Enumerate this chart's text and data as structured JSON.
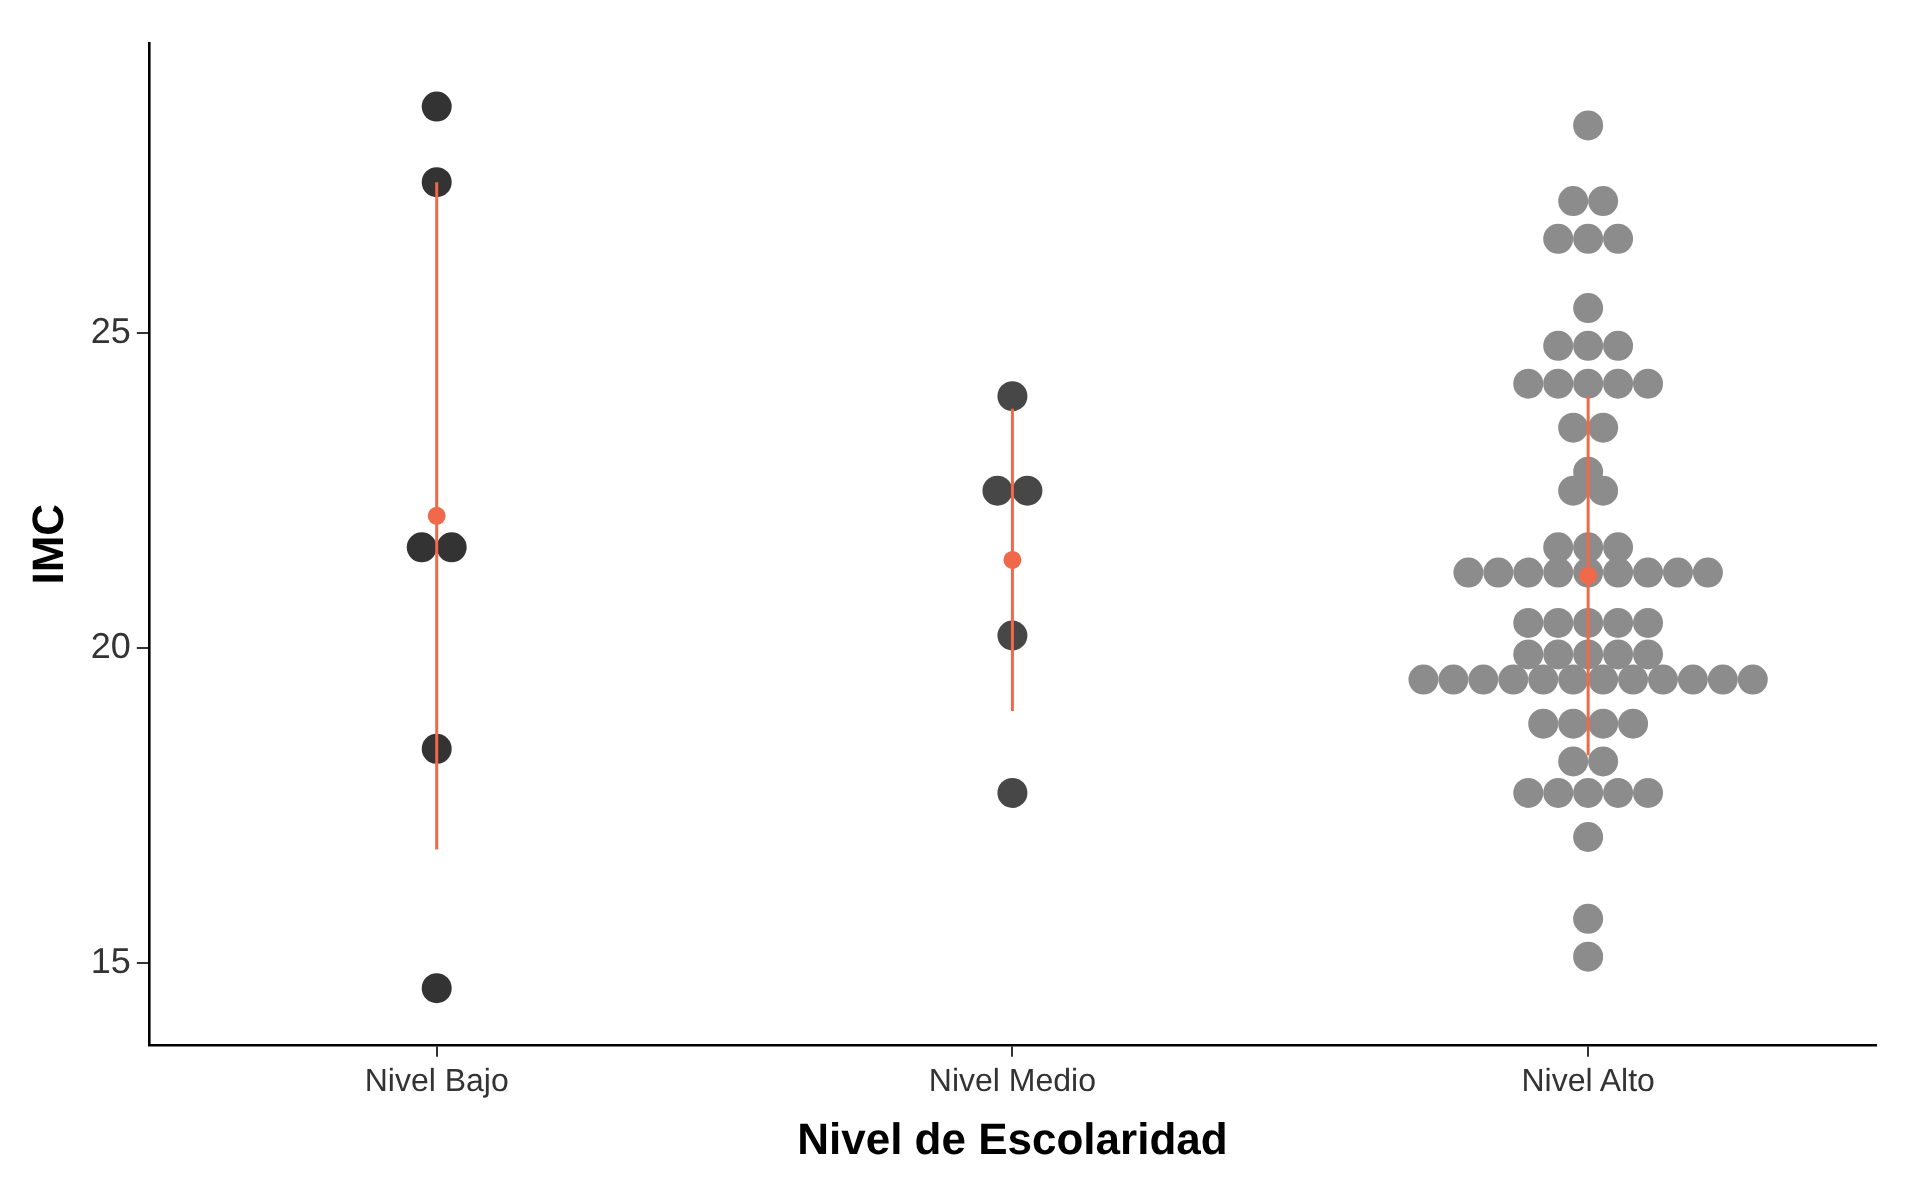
{
  "chart_data": {
    "type": "scatter",
    "xlabel": "Nivel de Escolaridad",
    "ylabel": "IMC",
    "categories": [
      "Nivel Bajo",
      "Nivel Medio",
      "Nivel Alto"
    ],
    "ylim": [
      13.7,
      29.6
    ],
    "yticks": [
      15,
      20,
      25
    ],
    "marker": "circle",
    "series": [
      {
        "color": "#333333",
        "x": [
          "Nivel Bajo",
          "Nivel Bajo",
          "Nivel Bajo",
          "Nivel Bajo",
          "Nivel Bajo",
          "Nivel Bajo"
        ],
        "values": [
          28.6,
          27.4,
          21.6,
          21.6,
          18.4,
          14.6
        ]
      },
      {
        "color": "#474747",
        "x": [
          "Nivel Medio",
          "Nivel Medio",
          "Nivel Medio",
          "Nivel Medio",
          "Nivel Medio"
        ],
        "values": [
          24.0,
          22.5,
          22.5,
          20.2,
          17.7
        ]
      },
      {
        "color": "#8c8c8c",
        "x": [
          "Nivel Alto",
          "Nivel Alto",
          "Nivel Alto",
          "Nivel Alto",
          "Nivel Alto",
          "Nivel Alto",
          "Nivel Alto",
          "Nivel Alto",
          "Nivel Alto",
          "Nivel Alto",
          "Nivel Alto",
          "Nivel Alto",
          "Nivel Alto",
          "Nivel Alto",
          "Nivel Alto",
          "Nivel Alto",
          "Nivel Alto",
          "Nivel Alto",
          "Nivel Alto",
          "Nivel Alto",
          "Nivel Alto",
          "Nivel Alto",
          "Nivel Alto",
          "Nivel Alto",
          "Nivel Alto",
          "Nivel Alto",
          "Nivel Alto",
          "Nivel Alto",
          "Nivel Alto",
          "Nivel Alto",
          "Nivel Alto",
          "Nivel Alto",
          "Nivel Alto",
          "Nivel Alto",
          "Nivel Alto",
          "Nivel Alto",
          "Nivel Alto",
          "Nivel Alto",
          "Nivel Alto",
          "Nivel Alto",
          "Nivel Alto",
          "Nivel Alto",
          "Nivel Alto",
          "Nivel Alto",
          "Nivel Alto",
          "Nivel Alto",
          "Nivel Alto",
          "Nivel Alto",
          "Nivel Alto",
          "Nivel Alto",
          "Nivel Alto",
          "Nivel Alto",
          "Nivel Alto",
          "Nivel Alto",
          "Nivel Alto",
          "Nivel Alto",
          "Nivel Alto",
          "Nivel Alto",
          "Nivel Alto",
          "Nivel Alto",
          "Nivel Alto",
          "Nivel Alto",
          "Nivel Alto",
          "Nivel Alto",
          "Nivel Alto",
          "Nivel Alto",
          "Nivel Alto",
          "Nivel Alto"
        ],
        "values": [
          28.3,
          27.1,
          27.1,
          26.5,
          26.5,
          26.5,
          25.4,
          24.8,
          24.8,
          24.8,
          24.2,
          24.2,
          24.2,
          24.2,
          24.2,
          23.5,
          23.5,
          22.8,
          22.5,
          22.5,
          21.6,
          21.6,
          21.6,
          21.2,
          21.2,
          21.2,
          21.2,
          21.2,
          21.2,
          21.2,
          21.2,
          21.2,
          20.4,
          20.4,
          20.4,
          20.4,
          20.4,
          19.9,
          19.9,
          19.9,
          19.9,
          19.9,
          19.5,
          19.5,
          19.5,
          19.5,
          19.5,
          19.5,
          19.5,
          19.5,
          19.5,
          19.5,
          19.5,
          19.5,
          18.8,
          18.8,
          18.8,
          18.8,
          18.2,
          18.2,
          17.7,
          17.7,
          17.7,
          17.7,
          17.7,
          17.0,
          15.7,
          15.1
        ]
      },
      {
        "color": "#f0694a",
        "x": [
          "Nivel Bajo",
          "Nivel Medio",
          "Nivel Alto"
        ],
        "values": [
          22.1,
          21.4,
          21.15
        ],
        "errors": [
          [
            16.8,
            27.4
          ],
          [
            19.0,
            23.8
          ],
          [
            18.3,
            24.0
          ]
        ]
      }
    ]
  }
}
